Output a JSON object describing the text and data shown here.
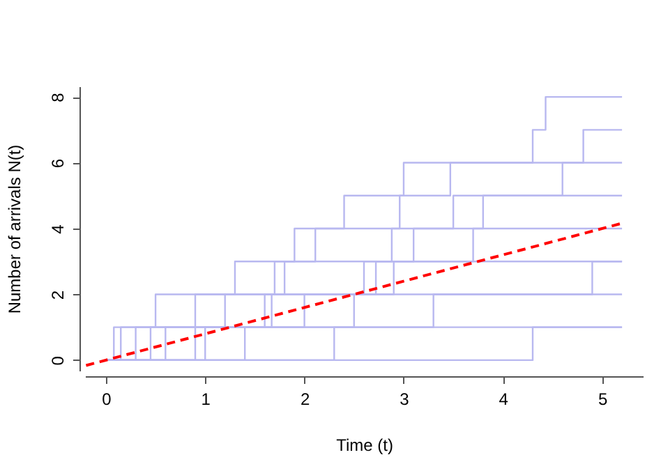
{
  "chart_data": {
    "type": "step",
    "xlabel": "Time (t)",
    "ylabel": "Number of arrivals N(t)",
    "xlim": [
      -0.21,
      5.41
    ],
    "ylim": [
      -0.32,
      8.32
    ],
    "xticks": [
      0,
      1,
      2,
      3,
      4,
      5
    ],
    "yticks": [
      0,
      2,
      4,
      6,
      8
    ],
    "grid": false,
    "marker": "none",
    "line_style": "solid",
    "series": [
      {
        "color": "#b8b8f0",
        "x": [
          0,
          0.15,
          0.5,
          1.7,
          2.11,
          2.96,
          3.47,
          4.3,
          4.43,
          5.2
        ],
        "values": [
          0,
          1,
          2,
          3,
          4,
          5,
          6,
          7,
          8,
          8
        ]
      },
      {
        "color": "#b8b8f0",
        "x": [
          0,
          0.3,
          0.9,
          1.3,
          1.9,
          2.4,
          3.0,
          4.0,
          4.81,
          5.2
        ],
        "values": [
          0,
          1,
          2,
          3,
          4,
          5,
          6,
          6,
          7,
          7
        ]
      },
      {
        "color": "#b8b8f0",
        "x": [
          0,
          0.08,
          1.67,
          2.72,
          3.1,
          3.8,
          4.6,
          5.2
        ],
        "values": [
          0,
          1,
          2,
          3,
          4,
          5,
          6,
          6
        ]
      },
      {
        "color": "#b8b8f0",
        "x": [
          0,
          0.6,
          1.2,
          1.8,
          2.88,
          3.5,
          5.2
        ],
        "values": [
          0,
          1,
          2,
          3,
          4,
          5,
          5
        ]
      },
      {
        "color": "#b8b8f0",
        "x": [
          0,
          0.9,
          2.0,
          2.9,
          3.7,
          5.2
        ],
        "values": [
          0,
          1,
          2,
          3,
          4,
          4
        ]
      },
      {
        "color": "#b8b8f0",
        "x": [
          0,
          1.0,
          3.3,
          4.9,
          5.2
        ],
        "values": [
          0,
          1,
          2,
          3,
          3
        ]
      },
      {
        "color": "#b8b8f0",
        "x": [
          0,
          0.45,
          1.6,
          2.6,
          5.2
        ],
        "values": [
          0,
          1,
          2,
          3,
          3
        ]
      },
      {
        "color": "#b8b8f0",
        "x": [
          0,
          1.4,
          2.5,
          5.2
        ],
        "values": [
          0,
          1,
          2,
          2
        ]
      },
      {
        "color": "#b8b8f0",
        "x": [
          0,
          2.3,
          5.2
        ],
        "values": [
          0,
          1,
          1
        ]
      },
      {
        "color": "#b8b8f0",
        "x": [
          0,
          4.3,
          5.2
        ],
        "values": [
          0,
          1,
          1
        ]
      },
      {
        "type": "line",
        "color": "#ff0000",
        "line_style": "dashed",
        "x": [
          -0.2,
          5.2
        ],
        "values": [
          -0.16,
          4.16
        ]
      }
    ]
  }
}
